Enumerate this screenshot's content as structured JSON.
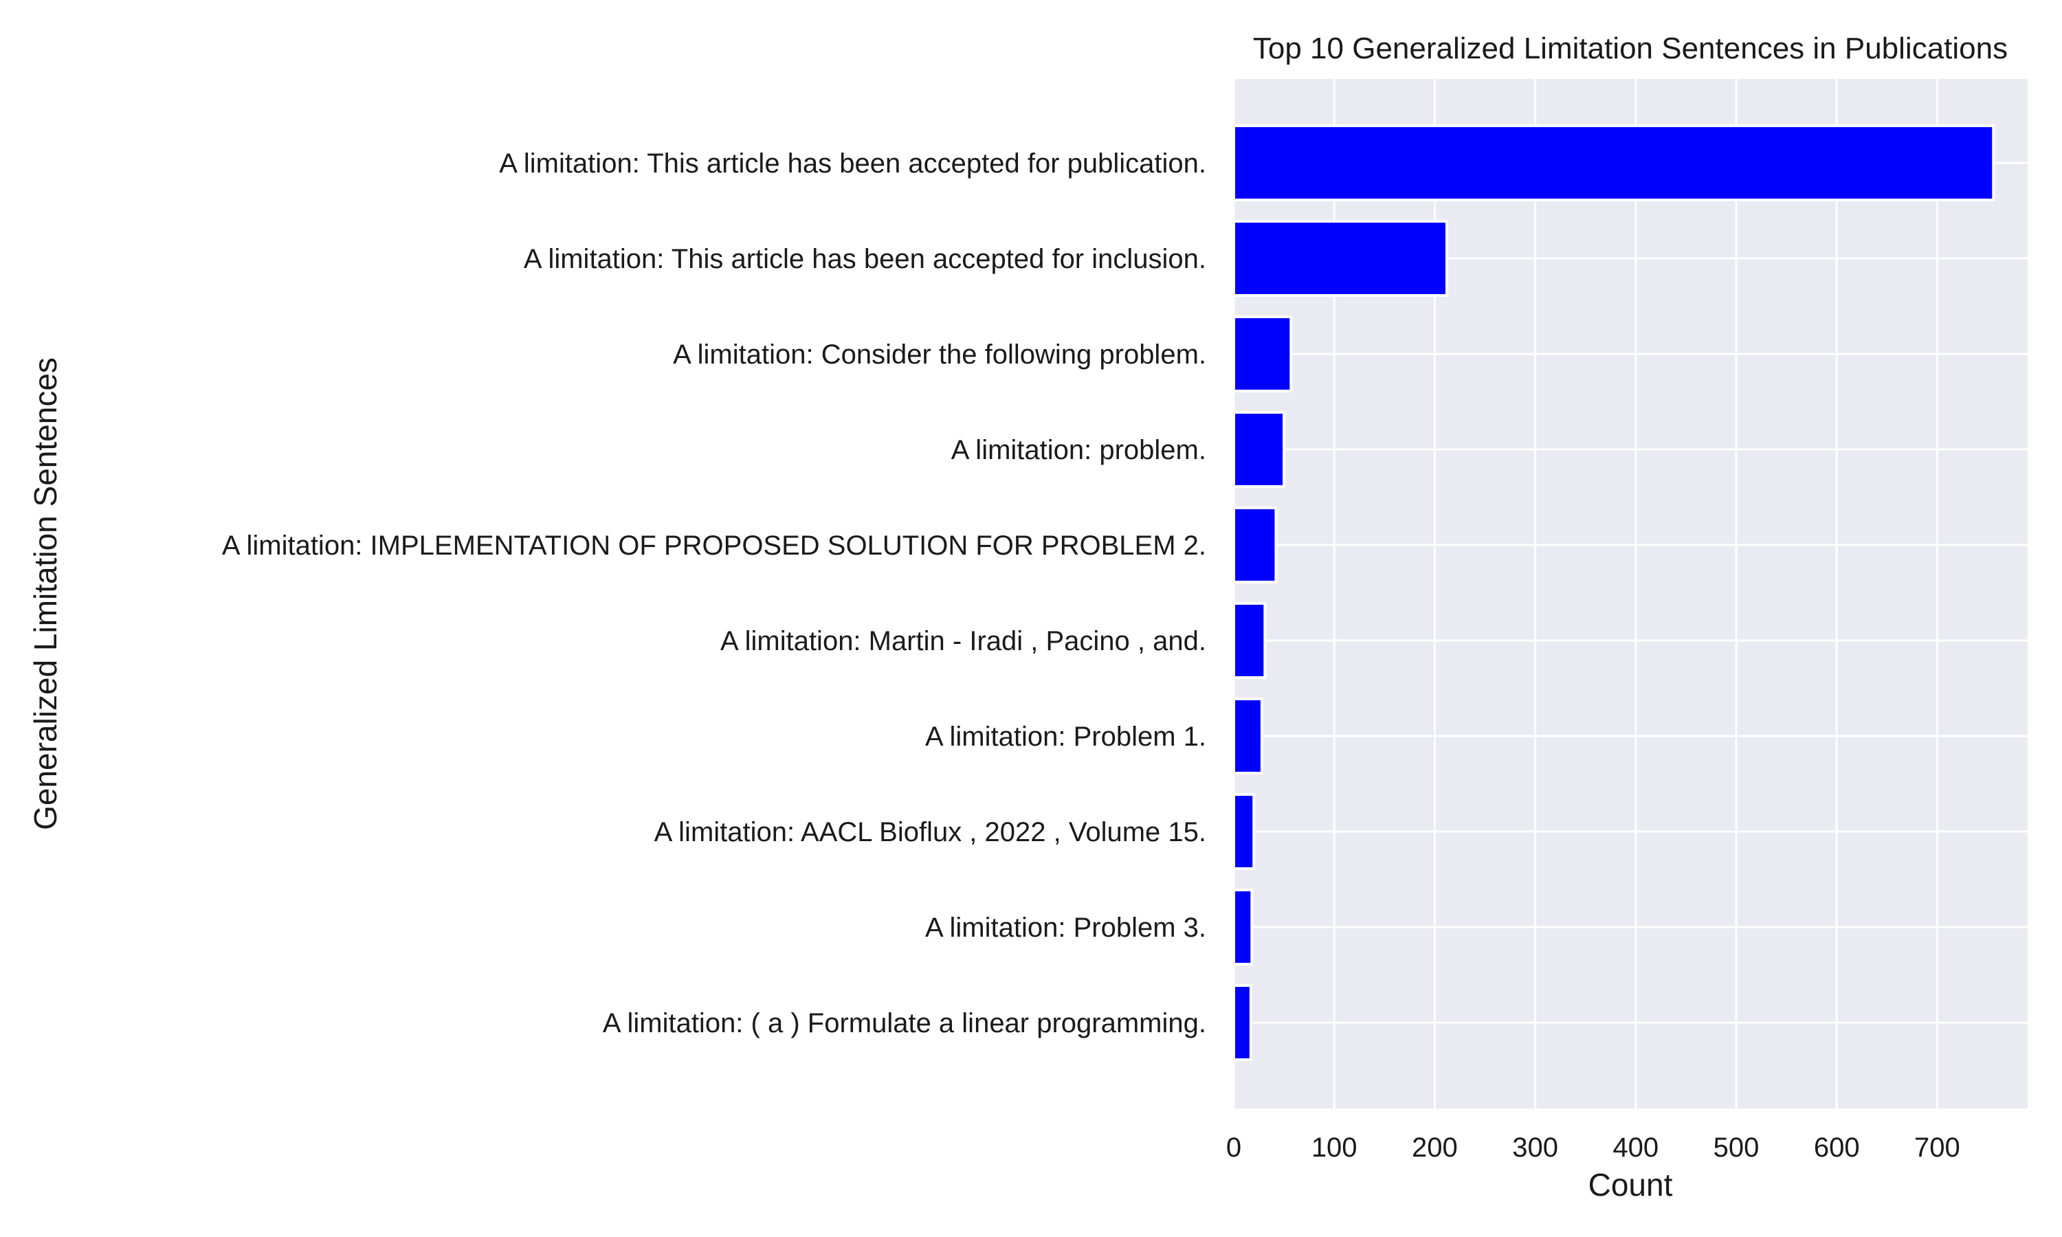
{
  "chart_data": {
    "type": "bar",
    "orientation": "horizontal",
    "title": "Top 10 Generalized Limitation Sentences in Publications",
    "xlabel": "Count",
    "ylabel": "Generalized Limitation Sentences",
    "categories": [
      "A limitation: This article has been accepted for publication.",
      "A limitation: This article has been accepted for inclusion.",
      "A limitation: Consider the following problem.",
      "A limitation: problem.",
      "A limitation: IMPLEMENTATION OF PROPOSED SOLUTION FOR PROBLEM 2.",
      "A limitation: Martin - Iradi , Pacino , and.",
      "A limitation: Problem 1.",
      "A limitation: AACL Bioflux , 2022 , Volume 15.",
      "A limitation: Problem 3.",
      "A limitation: ( a ) Formulate a linear programming."
    ],
    "values": [
      756,
      212,
      57,
      50,
      42,
      31,
      28,
      20,
      18,
      17
    ],
    "xlim": [
      0,
      790
    ],
    "xticks": [
      0,
      100,
      200,
      300,
      400,
      500,
      600,
      700
    ],
    "grid": true,
    "colors": {
      "bar": "#0000ff",
      "plot_background": "#eaeaf2",
      "grid": "#ffffff"
    }
  }
}
